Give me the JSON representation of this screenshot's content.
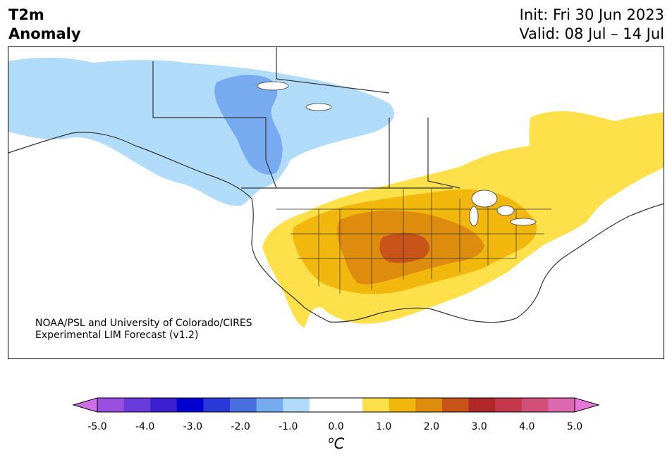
{
  "title": {
    "line1": "T2m",
    "line2": "Anomaly"
  },
  "dates": {
    "init": "Init: Fri 30 Jun 2023",
    "valid": "Valid: 08 Jul – 14 Jul"
  },
  "credit": {
    "line1": "NOAA/PSL and University of Colorado/CIRES",
    "line2": "Experimental LIM Forecast (v1.2)"
  },
  "colorbar": {
    "unit_base": "C",
    "unit_prefix": "o",
    "ticks": [
      "-5.0",
      "-4.0",
      "-3.0",
      "-2.0",
      "-1.0",
      "0.0",
      "1.0",
      "2.0",
      "3.0",
      "4.0",
      "5.0"
    ],
    "colors": [
      "#d070e8",
      "#9a4ee0",
      "#6a3bdc",
      "#3c1fd0",
      "#0000d0",
      "#2a3ad8",
      "#4a6fe0",
      "#78aaf0",
      "#b0dcfa",
      "#ffffff",
      "#ffffff",
      "#fde04a",
      "#f2b70c",
      "#dd8c0e",
      "#c8541a",
      "#b02828",
      "#c4384e",
      "#d0507a",
      "#dc68ae",
      "#e878d8"
    ],
    "range": [
      -5.0,
      5.0
    ],
    "step": 0.5
  },
  "regions": [
    {
      "name": "canada-cold-light",
      "color": "#b0dcfa"
    },
    {
      "name": "canada-cold-mid",
      "color": "#78aaf0"
    },
    {
      "name": "us-warm-light",
      "color": "#fde04a"
    },
    {
      "name": "us-warm-mid",
      "color": "#f2b70c"
    },
    {
      "name": "us-warm-strong",
      "color": "#dd8c0e"
    },
    {
      "name": "us-warm-core",
      "color": "#c8541a"
    },
    {
      "name": "quebec-warm",
      "color": "#fde04a"
    }
  ]
}
